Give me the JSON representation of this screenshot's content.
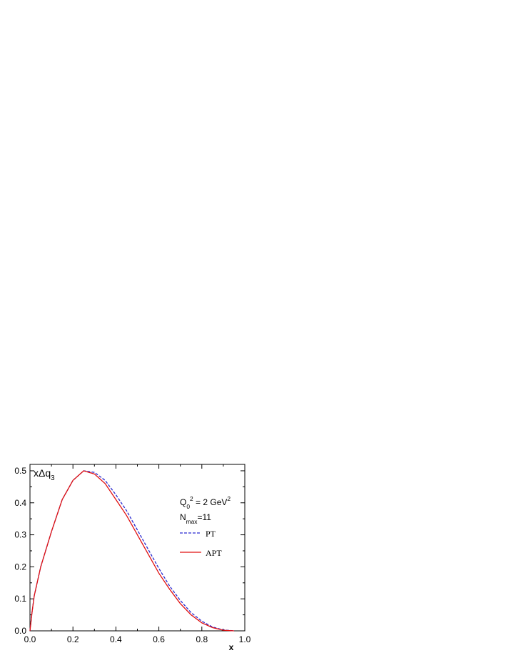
{
  "chart_data": {
    "type": "line",
    "x_label": "x",
    "y_label": [
      {
        "text": "xΔq"
      },
      {
        "text": "3",
        "shift": "sub"
      }
    ],
    "annotations": [
      [
        {
          "text": "Q"
        },
        {
          "text": "0",
          "shift": "sub"
        },
        {
          "text": "2",
          "shift": "sup"
        },
        {
          "text": " = 2 GeV"
        },
        {
          "text": "2",
          "shift": "sup"
        }
      ],
      [
        {
          "text": "N"
        },
        {
          "text": "max",
          "shift": "sub"
        },
        {
          "text": "=11"
        }
      ]
    ],
    "x": [
      0,
      0.01,
      0.02,
      0.05,
      0.1,
      0.15,
      0.2,
      0.25,
      0.3,
      0.35,
      0.4,
      0.45,
      0.5,
      0.55,
      0.6,
      0.65,
      0.7,
      0.75,
      0.8,
      0.85,
      0.9,
      0.95
    ],
    "series": [
      {
        "name": "PT",
        "color": "#2a2ad0",
        "dash": true,
        "values": [
          0,
          0.06,
          0.11,
          0.2,
          0.31,
          0.41,
          0.47,
          0.5,
          0.495,
          0.47,
          0.425,
          0.375,
          0.315,
          0.255,
          0.195,
          0.14,
          0.095,
          0.057,
          0.03,
          0.012,
          0.003,
          0
        ]
      },
      {
        "name": "APT",
        "color": "#e01010",
        "dash": false,
        "values": [
          0,
          0.06,
          0.11,
          0.2,
          0.31,
          0.41,
          0.47,
          0.5,
          0.49,
          0.46,
          0.41,
          0.36,
          0.3,
          0.24,
          0.18,
          0.13,
          0.085,
          0.05,
          0.025,
          0.01,
          0.002,
          0
        ]
      }
    ],
    "xlim": [
      0,
      1
    ],
    "ylim": [
      0,
      0.52
    ],
    "xticks": [
      {
        "value": 0,
        "label": "0.0"
      },
      {
        "value": 0.2,
        "label": "0.2"
      },
      {
        "value": 0.4,
        "label": "0.4"
      },
      {
        "value": 0.6,
        "label": "0.6"
      },
      {
        "value": 0.8,
        "label": "0.8"
      },
      {
        "value": 1,
        "label": "1.0"
      }
    ],
    "xminorticks": [
      0.1,
      0.3,
      0.5,
      0.7,
      0.9
    ],
    "yticks": [
      {
        "value": 0,
        "label": "0.0"
      },
      0.1,
      0.2,
      0.3,
      0.4,
      0.5
    ],
    "yminorticks": [
      0.05,
      0.15,
      0.25,
      0.35,
      0.45
    ]
  }
}
